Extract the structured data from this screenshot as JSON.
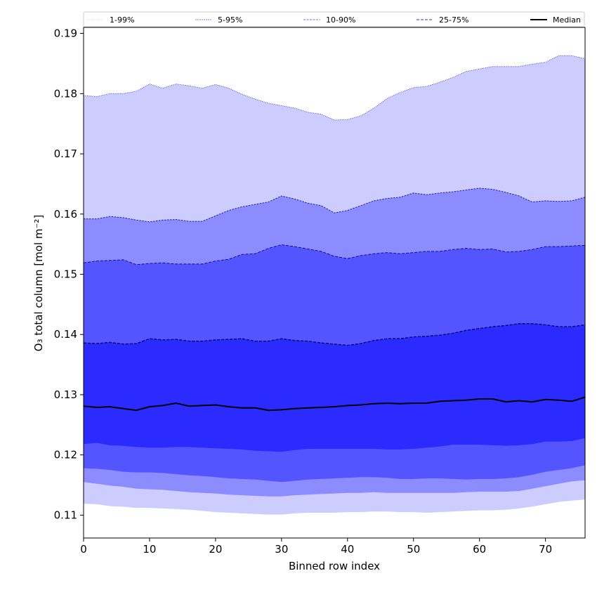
{
  "chart_data": {
    "type": "area",
    "title": "",
    "xlabel": "Binned row index",
    "ylabel": "O₃ total column [mol m⁻²]",
    "xlim": [
      0,
      76
    ],
    "ylim": [
      0.1062,
      0.191
    ],
    "xticks": [
      0,
      10,
      20,
      30,
      40,
      50,
      60,
      70
    ],
    "yticks": [
      0.11,
      0.12,
      0.13,
      0.14,
      0.15,
      0.16,
      0.17,
      0.18,
      0.19
    ],
    "ytick_labels": [
      "0.11",
      "0.12",
      "0.13",
      "0.14",
      "0.15",
      "0.16",
      "0.17",
      "0.18",
      "0.19"
    ],
    "grid": false,
    "legend_position": "top (above plot, single row)",
    "x": [
      0,
      2,
      4,
      6,
      8,
      10,
      12,
      14,
      16,
      18,
      20,
      22,
      24,
      26,
      28,
      30,
      32,
      34,
      36,
      38,
      40,
      42,
      44,
      46,
      48,
      50,
      52,
      54,
      56,
      58,
      60,
      62,
      64,
      66,
      68,
      70,
      72,
      74,
      76
    ],
    "bands": [
      {
        "name": "1-99%",
        "color": "#ccccff",
        "line_color": "#4444cc",
        "lower": [
          0.1119,
          0.1118,
          0.1115,
          0.1114,
          0.1112,
          0.1112,
          0.1111,
          0.111,
          0.1109,
          0.1107,
          0.1105,
          0.1104,
          0.1103,
          0.1102,
          0.1101,
          0.1101,
          0.1103,
          0.1104,
          0.1104,
          0.1104,
          0.1105,
          0.1105,
          0.1106,
          0.1106,
          0.1105,
          0.1105,
          0.1104,
          0.1105,
          0.1106,
          0.1107,
          0.1108,
          0.1108,
          0.1109,
          0.1111,
          0.1114,
          0.1118,
          0.1122,
          0.1124,
          0.1126
        ],
        "upper": [
          0.1797,
          0.1795,
          0.18,
          0.18,
          0.1804,
          0.1816,
          0.1809,
          0.1816,
          0.1813,
          0.1809,
          0.1815,
          0.1809,
          0.1799,
          0.1791,
          0.1784,
          0.178,
          0.1776,
          0.1769,
          0.1766,
          0.1756,
          0.1757,
          0.1763,
          0.1776,
          0.1792,
          0.1802,
          0.181,
          0.1812,
          0.1819,
          0.1827,
          0.1837,
          0.1841,
          0.1845,
          0.1845,
          0.1845,
          0.1849,
          0.1852,
          0.1863,
          0.1863,
          0.1858
        ]
      },
      {
        "name": "5-95%",
        "color": "#8c8cff",
        "line_color": "#2222aa",
        "lower": [
          0.1155,
          0.1152,
          0.1149,
          0.1147,
          0.1144,
          0.1143,
          0.1142,
          0.114,
          0.1138,
          0.1137,
          0.1136,
          0.1134,
          0.1133,
          0.1132,
          0.1131,
          0.1131,
          0.1133,
          0.1134,
          0.1135,
          0.1136,
          0.1137,
          0.1137,
          0.1138,
          0.1137,
          0.1137,
          0.1137,
          0.1137,
          0.1137,
          0.1137,
          0.1138,
          0.1139,
          0.1139,
          0.1139,
          0.114,
          0.1144,
          0.1148,
          0.1152,
          0.1156,
          0.1158
        ],
        "upper": [
          0.1592,
          0.1592,
          0.1596,
          0.1594,
          0.159,
          0.1587,
          0.159,
          0.1591,
          0.1588,
          0.1588,
          0.1597,
          0.1606,
          0.1612,
          0.1616,
          0.162,
          0.163,
          0.1625,
          0.1618,
          0.1614,
          0.1602,
          0.1606,
          0.1614,
          0.1622,
          0.1626,
          0.1628,
          0.1635,
          0.1632,
          0.1635,
          0.1637,
          0.164,
          0.1643,
          0.1641,
          0.1636,
          0.163,
          0.162,
          0.1622,
          0.1621,
          0.1622,
          0.1628
        ]
      },
      {
        "name": "10-90%",
        "color": "#5555ff",
        "line_color": "#111188",
        "lower": [
          0.1178,
          0.1177,
          0.1175,
          0.1172,
          0.1171,
          0.1171,
          0.117,
          0.1168,
          0.1166,
          0.1165,
          0.1163,
          0.1161,
          0.116,
          0.1159,
          0.1157,
          0.1155,
          0.1157,
          0.1159,
          0.116,
          0.1161,
          0.1162,
          0.1163,
          0.1163,
          0.1162,
          0.116,
          0.116,
          0.1161,
          0.1161,
          0.116,
          0.1159,
          0.116,
          0.116,
          0.1161,
          0.1163,
          0.1167,
          0.1172,
          0.1175,
          0.1178,
          0.1183
        ],
        "upper": [
          0.1519,
          0.1522,
          0.1523,
          0.1524,
          0.1516,
          0.1518,
          0.1519,
          0.1517,
          0.1517,
          0.1517,
          0.1522,
          0.1525,
          0.1533,
          0.1534,
          0.1543,
          0.1549,
          0.1546,
          0.1542,
          0.1538,
          0.153,
          0.1526,
          0.1531,
          0.1534,
          0.1536,
          0.1534,
          0.1536,
          0.1538,
          0.1538,
          0.1541,
          0.1543,
          0.1541,
          0.1542,
          0.1537,
          0.1538,
          0.1541,
          0.1546,
          0.1546,
          0.1547,
          0.1548
        ]
      },
      {
        "name": "25-75%",
        "color": "#2b2bff",
        "line_color": "#000066",
        "lower": [
          0.1218,
          0.122,
          0.1216,
          0.1215,
          0.1213,
          0.1212,
          0.1212,
          0.1213,
          0.1213,
          0.1212,
          0.1211,
          0.121,
          0.1209,
          0.1207,
          0.1206,
          0.1205,
          0.1208,
          0.121,
          0.121,
          0.121,
          0.121,
          0.121,
          0.121,
          0.1209,
          0.1209,
          0.121,
          0.1212,
          0.1214,
          0.1217,
          0.1217,
          0.1217,
          0.1216,
          0.1215,
          0.1216,
          0.1218,
          0.1222,
          0.1222,
          0.1223,
          0.1228
        ],
        "upper": [
          0.1386,
          0.1385,
          0.1387,
          0.1384,
          0.1385,
          0.1393,
          0.1391,
          0.1392,
          0.1389,
          0.1389,
          0.1391,
          0.1392,
          0.1393,
          0.1389,
          0.1389,
          0.1393,
          0.139,
          0.1389,
          0.1386,
          0.1384,
          0.1382,
          0.1385,
          0.139,
          0.1393,
          0.1393,
          0.1396,
          0.1397,
          0.1399,
          0.1402,
          0.1407,
          0.141,
          0.1413,
          0.1415,
          0.1418,
          0.1418,
          0.1416,
          0.1413,
          0.1413,
          0.1416
        ]
      }
    ],
    "series": [
      {
        "name": "Median",
        "color": "#000000",
        "values": [
          0.1281,
          0.1279,
          0.128,
          0.1277,
          0.1274,
          0.128,
          0.1282,
          0.1286,
          0.1281,
          0.1282,
          0.1283,
          0.128,
          0.1278,
          0.1278,
          0.1274,
          0.1275,
          0.1277,
          0.1278,
          0.1279,
          0.128,
          0.1282,
          0.1283,
          0.1285,
          0.1286,
          0.1285,
          0.1286,
          0.1286,
          0.1289,
          0.129,
          0.1291,
          0.1293,
          0.1293,
          0.1288,
          0.129,
          0.1288,
          0.1292,
          0.1291,
          0.1289,
          0.1296
        ]
      }
    ],
    "legend": [
      {
        "label": "1-99%",
        "style": "dotted",
        "color": "#ccccff"
      },
      {
        "label": "5-95%",
        "style": "dashed",
        "color": "#8c8cff"
      },
      {
        "label": "10-90%",
        "style": "dashed",
        "color": "#7777ee"
      },
      {
        "label": "25-75%",
        "style": "dashed",
        "color": "#5555ff"
      },
      {
        "label": "Median",
        "style": "solid",
        "color": "#000000"
      }
    ]
  }
}
